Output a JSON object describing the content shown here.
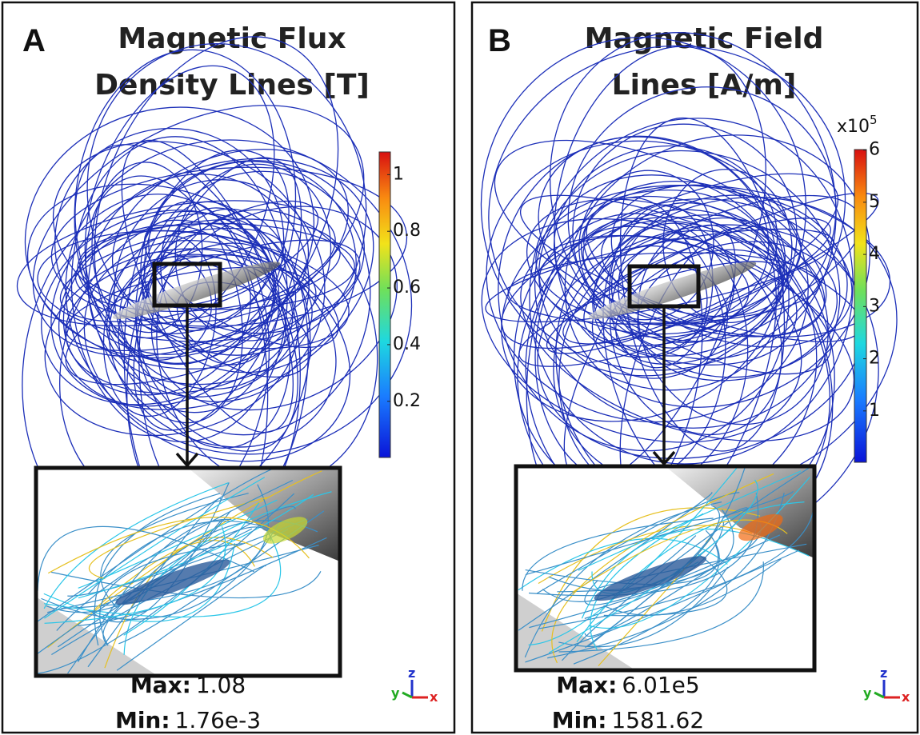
{
  "panels": [
    {
      "label": "A",
      "title_lines": [
        "Magnetic Flux",
        "Density Lines [T]"
      ],
      "colorbar": {
        "lim": [
          0.00176,
          1.08
        ],
        "ticks": [
          0.2,
          0.4,
          0.6,
          0.8,
          1
        ]
      },
      "max": {
        "label": "Max:",
        "value": "1.08"
      },
      "min": {
        "label": "Min:",
        "value": "1.76e-3"
      },
      "triad": {
        "x": "x",
        "y": "y",
        "z": "z"
      }
    },
    {
      "label": "B",
      "title_lines": [
        "Magnetic Field",
        "Lines [A/m]"
      ],
      "colorbar": {
        "lim": [
          0.0158,
          6.01
        ],
        "ticks": [
          1,
          2,
          3,
          4,
          5,
          6
        ],
        "multiplier": "x10",
        "exponent": "5"
      },
      "max": {
        "label": "Max:",
        "value": "6.01e5"
      },
      "min": {
        "label": "Min:",
        "value": "1581.62"
      },
      "triad": {
        "x": "x",
        "y": "y",
        "z": "z"
      }
    }
  ]
}
